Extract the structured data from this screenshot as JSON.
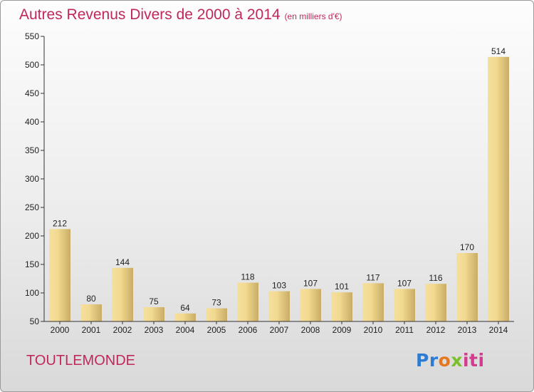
{
  "title": "Autres Revenus Divers de 2000 à 2014",
  "subtitle": "(en milliers d'€)",
  "footer": {
    "commune": "TOUTLEMONDE",
    "logo_parts": [
      "Pr",
      "o",
      "x",
      "iti"
    ]
  },
  "colors": {
    "title": "#c0285a",
    "bar_light": "#f5e09f",
    "bar_dark": "#c9ad67",
    "axis": "#333333",
    "logo": [
      "#2e7bd4",
      "#e8761c",
      "#7bbf2a",
      "#d43b8e"
    ]
  },
  "chart_data": {
    "type": "bar",
    "categories": [
      "2000",
      "2001",
      "2002",
      "2003",
      "2004",
      "2005",
      "2006",
      "2007",
      "2008",
      "2009",
      "2010",
      "2011",
      "2012",
      "2013",
      "2014"
    ],
    "values": [
      212,
      80,
      144,
      75,
      64,
      73,
      118,
      103,
      107,
      101,
      117,
      107,
      116,
      170,
      514
    ],
    "ylim": [
      50,
      550
    ],
    "yticks": [
      50,
      100,
      150,
      200,
      250,
      300,
      350,
      400,
      450,
      500,
      550
    ],
    "grid": false,
    "data_labels": true
  }
}
